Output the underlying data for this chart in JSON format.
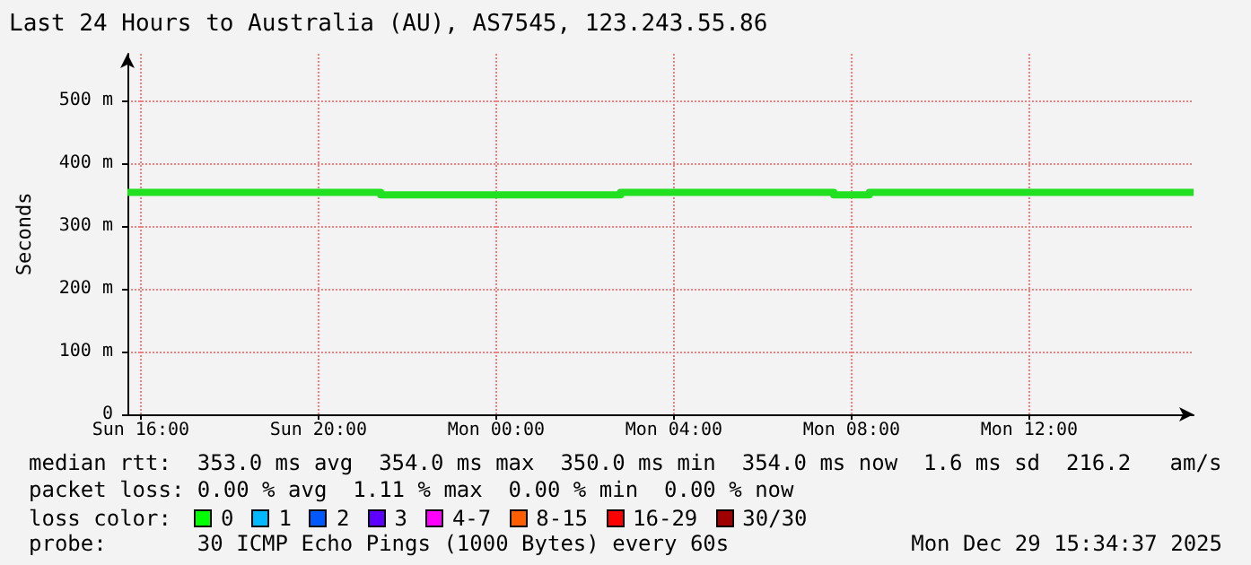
{
  "chart_data": {
    "type": "step",
    "title": "Last 24 Hours to Australia (AU), AS7545, 123.243.55.86",
    "ylabel": "Seconds",
    "x": [
      "2025-12-28T15:42",
      "2025-12-28T21:24",
      "2025-12-29T02:48",
      "2025-12-29T07:36",
      "2025-12-29T08:24",
      "2025-12-29T15:42"
    ],
    "series": [
      {
        "color": "#20e020",
        "values": [
          354,
          350,
          354,
          350,
          354,
          354
        ]
      }
    ],
    "xlim": [
      "2025-12-28T15:42",
      "2025-12-29T15:42"
    ],
    "xticks": [
      {
        "value": "2025-12-28T16:00",
        "label": "Sun 16:00"
      },
      {
        "value": "2025-12-28T20:00",
        "label": "Sun 20:00"
      },
      {
        "value": "2025-12-29T00:00",
        "label": "Mon 00:00"
      },
      {
        "value": "2025-12-29T04:00",
        "label": "Mon 04:00"
      },
      {
        "value": "2025-12-29T08:00",
        "label": "Mon 08:00"
      },
      {
        "value": "2025-12-29T12:00",
        "label": "Mon 12:00"
      }
    ],
    "ylim": [
      0,
      575
    ],
    "yticks": [
      0,
      {
        "value": 100,
        "label": "100 m"
      },
      {
        "value": 200,
        "label": "200 m"
      },
      {
        "value": 300,
        "label": "300 m"
      },
      {
        "value": 400,
        "label": "400 m"
      },
      {
        "value": 500,
        "label": "500 m"
      }
    ],
    "grid": true,
    "marker": "none",
    "line_style": "solid",
    "annotations": [
      "median rtt:  353.0 ms avg  354.0 ms max  350.0 ms min  354.0 ms now  1.6 ms sd  216.2   am/s",
      "packet loss: 0.00 % avg  1.11 % max  0.00 % min  0.00 % now",
      "loss color:",
      "0",
      "1",
      "2",
      "3",
      "4-7",
      "8-15",
      "16-29",
      "30/30",
      "probe:       30 ICMP Echo Pings (1000 Bytes) every 60s",
      "Mon Dec 29 15:34:37 2025"
    ]
  }
}
